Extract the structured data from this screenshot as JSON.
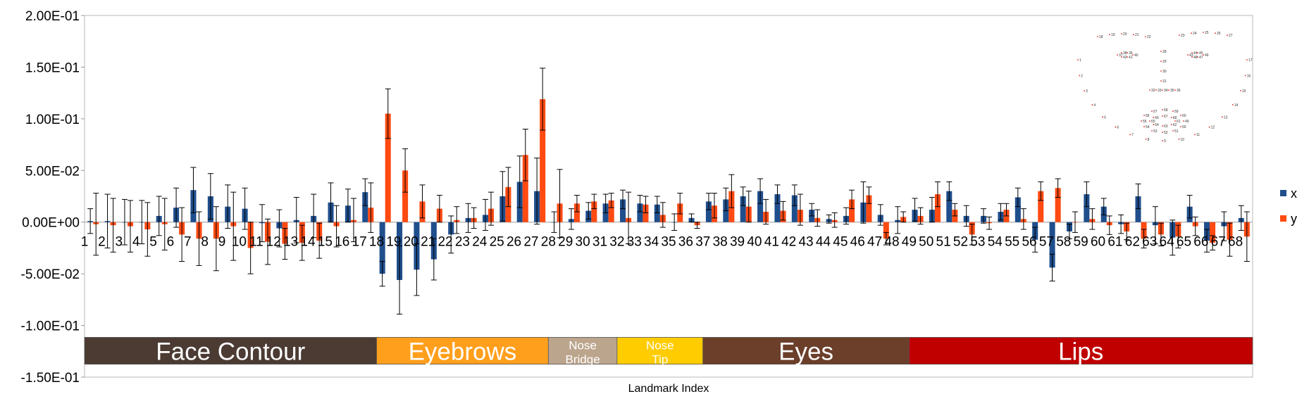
{
  "chart_data": {
    "type": "bar",
    "xlabel": "Landmark Index",
    "ylabel": "",
    "ylim": [
      -0.15,
      0.2
    ],
    "yticks": [
      "2.00E-01",
      "1.50E-01",
      "1.00E-01",
      "5.00E-02",
      "0.00E+00",
      "-5.00E-02",
      "-1.00E-01",
      "-1.50E-01"
    ],
    "ytick_values": [
      0.2,
      0.15,
      0.1,
      0.05,
      0,
      -0.05,
      -0.1,
      -0.15
    ],
    "grid": false,
    "legend_position": "right",
    "categories": [
      "1",
      "2",
      "3",
      "4",
      "5",
      "6",
      "7",
      "8",
      "9",
      "10",
      "11",
      "12",
      "13",
      "14",
      "15",
      "16",
      "17",
      "18",
      "19",
      "20",
      "21",
      "22",
      "23",
      "24",
      "25",
      "26",
      "27",
      "28",
      "29",
      "30",
      "31",
      "32",
      "33",
      "34",
      "35",
      "36",
      "37",
      "38",
      "39",
      "40",
      "41",
      "42",
      "43",
      "44",
      "45",
      "46",
      "47",
      "48",
      "49",
      "50",
      "51",
      "52",
      "53",
      "54",
      "55",
      "56",
      "57",
      "58",
      "59",
      "60",
      "61",
      "62",
      "63",
      "64",
      "65",
      "66",
      "67",
      "68"
    ],
    "series": [
      {
        "name": "x",
        "color": "#1f4e8c",
        "values": [
          0.001,
          0.001,
          0.0,
          0.0,
          0.006,
          0.014,
          0.031,
          0.025,
          0.015,
          0.013,
          -0.001,
          -0.006,
          0.002,
          0.006,
          0.019,
          0.016,
          0.029,
          -0.05,
          -0.056,
          -0.046,
          -0.036,
          -0.012,
          0.004,
          0.007,
          0.025,
          0.039,
          0.03,
          0.0,
          0.003,
          0.011,
          0.018,
          0.022,
          0.018,
          0.017,
          0.0,
          0.004,
          0.02,
          0.022,
          0.025,
          0.03,
          0.027,
          0.026,
          0.012,
          0.003,
          0.006,
          0.019,
          0.007,
          0.002,
          0.012,
          0.012,
          0.03,
          0.006,
          0.006,
          0.01,
          0.024,
          -0.017,
          -0.044,
          -0.009,
          0.027,
          0.015,
          -0.002,
          0.025,
          -0.003,
          -0.015,
          0.015,
          -0.018,
          -0.004,
          0.004
        ],
        "errors": [
          0.012,
          0.026,
          0.022,
          0.021,
          0.019,
          0.019,
          0.022,
          0.022,
          0.021,
          0.02,
          0.018,
          0.018,
          0.022,
          0.021,
          0.019,
          0.016,
          0.013,
          0.012,
          0.033,
          0.025,
          0.02,
          0.018,
          0.014,
          0.015,
          0.024,
          0.025,
          0.032,
          0.01,
          0.01,
          0.008,
          0.009,
          0.009,
          0.008,
          0.008,
          0.008,
          0.004,
          0.008,
          0.011,
          0.009,
          0.012,
          0.009,
          0.01,
          0.006,
          0.004,
          0.008,
          0.02,
          0.01,
          0.013,
          0.011,
          0.012,
          0.009,
          0.01,
          0.007,
          0.008,
          0.009,
          0.012,
          0.013,
          0.007,
          0.012,
          0.008,
          0.009,
          0.012,
          0.018,
          0.017,
          0.011,
          0.011,
          0.014,
          0.012
        ]
      },
      {
        "name": "y",
        "color": "#ff4a12",
        "values": [
          -0.002,
          -0.003,
          -0.004,
          -0.007,
          -0.002,
          -0.012,
          -0.016,
          -0.016,
          -0.004,
          -0.025,
          -0.019,
          -0.021,
          -0.02,
          -0.018,
          -0.004,
          0.002,
          0.014,
          0.105,
          0.05,
          0.02,
          0.013,
          0.002,
          0.004,
          0.013,
          0.034,
          0.065,
          0.119,
          0.018,
          0.018,
          0.02,
          0.021,
          0.004,
          0.017,
          0.007,
          0.018,
          -0.003,
          0.016,
          0.03,
          0.015,
          0.01,
          0.011,
          0.012,
          0.004,
          0.002,
          0.022,
          0.026,
          -0.016,
          0.005,
          0.006,
          0.027,
          0.012,
          -0.012,
          -0.001,
          0.012,
          0.003,
          0.03,
          0.033,
          0.0,
          0.003,
          -0.003,
          -0.009,
          -0.016,
          -0.012,
          -0.014,
          -0.004,
          -0.02,
          -0.017,
          -0.014
        ],
        "errors": [
          0.03,
          0.026,
          0.025,
          0.026,
          0.025,
          0.026,
          0.026,
          0.031,
          0.033,
          0.025,
          0.022,
          0.015,
          0.017,
          0.017,
          0.02,
          0.021,
          0.024,
          0.024,
          0.021,
          0.016,
          0.013,
          0.013,
          0.01,
          0.016,
          0.019,
          0.025,
          0.03,
          0.033,
          0.008,
          0.007,
          0.007,
          0.025,
          0.008,
          0.012,
          0.01,
          0.003,
          0.012,
          0.016,
          0.015,
          0.012,
          0.009,
          0.015,
          0.008,
          0.007,
          0.009,
          0.008,
          0.006,
          0.005,
          0.008,
          0.012,
          0.006,
          0.01,
          0.006,
          0.006,
          0.01,
          0.009,
          0.009,
          0.01,
          0.01,
          0.009,
          0.008,
          0.009,
          0.011,
          0.011,
          0.009,
          0.007,
          0.016,
          0.024
        ]
      }
    ],
    "regions": [
      {
        "label": "Face Contour",
        "start": 1,
        "end": 17,
        "color": "#4b3b33"
      },
      {
        "label": "Eyebrows",
        "start": 18,
        "end": 27,
        "color": "#ff9f1c"
      },
      {
        "label": "Nose Bridge",
        "start": 28,
        "end": 31,
        "color": "#bca58d"
      },
      {
        "label": "Nose Tip",
        "start": 32,
        "end": 36,
        "color": "#ffcc00"
      },
      {
        "label": "Eyes",
        "start": 37,
        "end": 48,
        "color": "#6b3f2a"
      },
      {
        "label": "Lips",
        "start": 49,
        "end": 68,
        "color": "#c00000"
      }
    ]
  },
  "inset": {
    "description_labels": [
      "1",
      "2",
      "3",
      "4",
      "5",
      "6",
      "7",
      "8",
      "9",
      "10",
      "11",
      "12",
      "13",
      "14",
      "15",
      "16",
      "17",
      "18",
      "19",
      "20",
      "21",
      "22",
      "23",
      "24",
      "25",
      "26",
      "27",
      "28",
      "29",
      "30",
      "31",
      "32",
      "33",
      "34",
      "35",
      "36",
      "37",
      "38",
      "39",
      "40",
      "41",
      "42",
      "43",
      "44",
      "45",
      "46",
      "47",
      "48",
      "49",
      "50",
      "51",
      "52",
      "53",
      "54",
      "55",
      "56",
      "57",
      "58",
      "59",
      "60",
      "61",
      "62",
      "63",
      "64",
      "65",
      "66",
      "67",
      "68"
    ]
  }
}
